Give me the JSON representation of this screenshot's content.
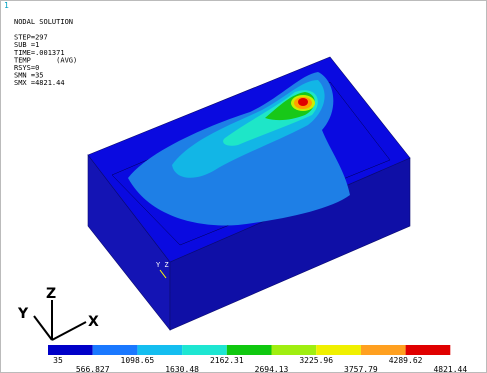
{
  "info": {
    "lines": [
      "NODAL SOLUTION",
      "STEP=297",
      "SUB =1",
      "TIME=.001371",
      "TEMP      (AVG)",
      "RSYS=0",
      "SMN =35",
      "SMX =4821.44"
    ]
  },
  "window_number": "1",
  "corner_label": "Y Z",
  "triad": {
    "x": "X",
    "y": "Y",
    "z": "Z"
  },
  "legend": {
    "labels": [
      35,
      566.827,
      1098.65,
      1630.48,
      2162.31,
      2694.13,
      3225.96,
      3757.79,
      4289.62,
      4821.44
    ]
  }
}
